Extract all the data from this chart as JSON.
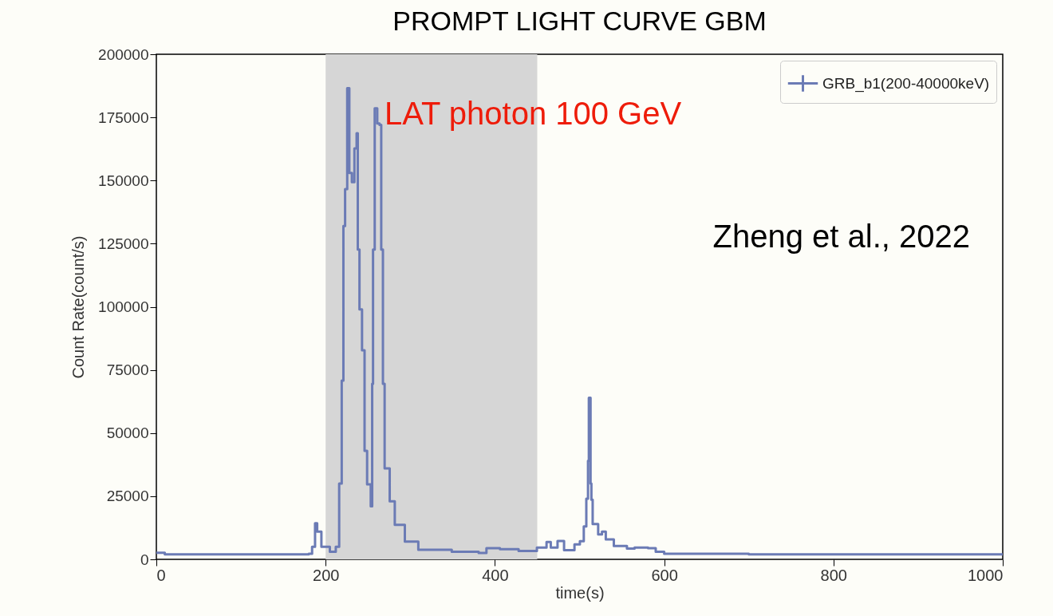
{
  "chart_data": {
    "type": "step",
    "title": "PROMPT LIGHT CURVE GBM",
    "xlabel": "time(s)",
    "ylabel": "Count Rate(count/s)",
    "xlim": [
      0,
      1000
    ],
    "xticks": [
      0,
      200,
      400,
      600,
      800,
      1000
    ],
    "ylim": [
      0,
      200000
    ],
    "yticks": [
      0,
      25000,
      50000,
      75000,
      100000,
      125000,
      150000,
      175000,
      200000
    ],
    "grid": false,
    "legend": "top right",
    "marker": "none",
    "line_style": "solid",
    "bands": [
      {
        "axis": "x",
        "from": 200,
        "to": 450,
        "color": "#d6d6d6"
      }
    ],
    "annotations": [
      "LAT photon 100 GeV",
      "Zheng et al., 2022"
    ],
    "series": [
      {
        "name": "GRB_b1(200-40000keV)",
        "color": "#6b7bb5",
        "x": [
          0,
          10,
          100,
          180,
          184,
          187.5,
          190,
          195,
          205,
          212,
          216,
          219,
          221,
          223,
          225.5,
          228,
          231,
          234,
          236.6,
          238,
          240,
          243,
          246,
          249,
          253.3,
          255,
          256,
          258,
          261,
          263.7,
          265.7,
          267.7,
          269.7,
          275.7,
          281.7,
          293.6,
          309.5,
          349,
          380.8,
          390,
          406,
          428,
          449.6,
          461,
          466,
          474,
          481.7,
          494,
          500.4,
          505,
          508,
          510,
          511,
          513,
          514,
          515.5,
          522,
          526.5,
          531,
          540.5,
          556,
          565,
          581,
          590,
          600,
          700,
          800,
          900,
          1000
        ],
        "values": [
          2600,
          2000,
          2000,
          2200,
          5000,
          14300,
          11000,
          5000,
          3000,
          5000,
          30000,
          70800,
          132000,
          146600,
          186600,
          153000,
          149400,
          162700,
          168700,
          122700,
          99000,
          82800,
          43000,
          29700,
          21000,
          69500,
          122700,
          178600,
          172600,
          172000,
          122700,
          69500,
          36000,
          23000,
          13700,
          7000,
          3800,
          3000,
          2500,
          4400,
          4000,
          3300,
          4700,
          6900,
          4700,
          7300,
          3600,
          5900,
          7200,
          13000,
          24000,
          39000,
          64000,
          30000,
          23600,
          14000,
          9900,
          11000,
          7900,
          5300,
          4300,
          4700,
          4400,
          3000,
          2200,
          2000,
          2000,
          2000,
          2000
        ]
      }
    ]
  }
}
